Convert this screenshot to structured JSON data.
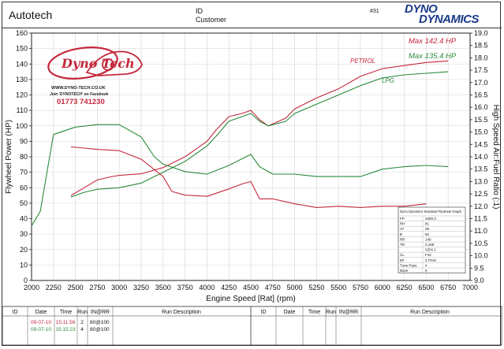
{
  "header": {
    "company": "Autotech",
    "id_label": "ID",
    "customer_label": "Customer",
    "number": "#31",
    "brand_top": "DYNO",
    "brand_bottom": "DYNAMICS"
  },
  "logo": {
    "text": "Dyno Tech",
    "url": "WWW.DYNO-TECH.CO.UK",
    "facebook": "Join 'DYNOTECH' on Facebook",
    "phone": "01773 741230"
  },
  "colors": {
    "petrol": "#c4283c",
    "lpg": "#2a8a3a",
    "axis": "#222222",
    "grid": "#d4d4d4"
  },
  "chart_data": {
    "type": "line",
    "xlabel": "Engine Speed [Rat] (rpm)",
    "ylabel": "Flywheel Power (HP)",
    "y2label": "High Speed Air:Fuel Ratio (:1)",
    "xlim": [
      2000,
      7000
    ],
    "ylim": [
      0,
      160
    ],
    "y2lim": [
      9.0,
      19.0
    ],
    "x_ticks": [
      2000,
      2250,
      2500,
      2750,
      3000,
      3250,
      3500,
      3750,
      4000,
      4250,
      4500,
      4750,
      5000,
      5250,
      5500,
      5750,
      6000,
      6250,
      6500,
      6750,
      7000
    ],
    "y_ticks": [
      0,
      10,
      20,
      30,
      40,
      50,
      60,
      70,
      80,
      90,
      100,
      110,
      120,
      130,
      140,
      150,
      160
    ],
    "y2_ticks": [
      "9.0",
      "9.5",
      "10.0",
      "10.5",
      "11.0",
      "11.5",
      "12.0",
      "12.5",
      "13.0",
      "13.5",
      "14.0",
      "14.5",
      "15.0",
      "15.5",
      "16.0",
      "16.5",
      "17.0",
      "17.5",
      "18.0",
      "18.5",
      "19.0"
    ],
    "grid": true,
    "annotations": {
      "max_petrol": "Max 142.4 HP",
      "max_lpg": "Max 135.4 HP",
      "petrol_label": "PETROL",
      "lpg_label": "LPG"
    },
    "series": [
      {
        "name": "PETROL",
        "axis": "power",
        "x": [
          2450,
          2600,
          2750,
          2900,
          3000,
          3250,
          3500,
          3750,
          4000,
          4100,
          4250,
          4400,
          4500,
          4600,
          4700,
          4900,
          5000,
          5250,
          5500,
          5750,
          6000,
          6250,
          6500,
          6750
        ],
        "y": [
          55,
          60,
          65,
          67,
          68,
          69,
          73,
          80,
          90,
          97,
          106,
          108,
          110,
          104,
          100,
          105,
          111,
          118,
          124,
          132,
          137,
          139,
          141,
          142
        ]
      },
      {
        "name": "LPG",
        "axis": "power",
        "x": [
          2450,
          2600,
          2750,
          3000,
          3250,
          3500,
          3750,
          4000,
          4100,
          4250,
          4400,
          4500,
          4600,
          4700,
          4900,
          5000,
          5250,
          5500,
          5750,
          6000,
          6250,
          6500,
          6750
        ],
        "y": [
          54,
          57,
          59,
          60,
          63,
          70,
          77,
          87,
          93,
          103,
          106,
          108,
          103,
          100,
          103,
          108,
          114,
          120,
          126,
          131,
          133,
          134,
          135
        ]
      },
      {
        "name": "PETROL AFR",
        "axis": "afr",
        "x": [
          2450,
          2600,
          2750,
          3000,
          3250,
          3500,
          3600,
          3750,
          4000,
          4250,
          4400,
          4500,
          4600,
          4750,
          5000,
          5250,
          5500,
          5750,
          6000,
          6250,
          6500
        ],
        "y": [
          14.4,
          14.35,
          14.3,
          14.25,
          13.9,
          13.2,
          12.6,
          12.45,
          12.4,
          12.7,
          12.9,
          13.0,
          12.3,
          12.3,
          12.1,
          11.95,
          12.0,
          11.95,
          12.0,
          12.0,
          12.1
        ]
      },
      {
        "name": "LPG AFR",
        "axis": "afr",
        "x": [
          2000,
          2100,
          2250,
          2500,
          2750,
          3000,
          3250,
          3400,
          3500,
          3750,
          4000,
          4250,
          4500,
          4600,
          4750,
          5000,
          5250,
          5500,
          5750,
          6000,
          6250,
          6500,
          6750
        ],
        "y": [
          11.2,
          11.8,
          14.9,
          15.2,
          15.3,
          15.3,
          14.8,
          14.0,
          13.7,
          13.4,
          13.3,
          13.65,
          14.1,
          13.6,
          13.3,
          13.3,
          13.2,
          13.2,
          13.2,
          13.5,
          13.6,
          13.65,
          13.6
        ]
      }
    ]
  },
  "summary_box": {
    "title": "Dyno Dynamics Standard Flywheel Graph",
    "rows": [
      [
        "FP",
        "1000.3"
      ],
      [
        "RH",
        "81"
      ],
      [
        "AT",
        "28"
      ],
      [
        "B",
        "82"
      ],
      [
        "RR",
        "140"
      ],
      [
        "TR",
        "3.168"
      ],
      [
        "",
        "GEN 1"
      ],
      [
        "CL",
        "F44"
      ],
      [
        "EF",
        "3 ITHU"
      ],
      [
        "Tune Pass",
        "4"
      ],
      [
        "Base",
        "0"
      ]
    ]
  },
  "footer": {
    "left_headers": [
      "ID",
      "Date",
      "Time",
      "Run",
      "IN@RR",
      "Run Description"
    ],
    "right_headers": [
      "ID",
      "Date",
      "Time",
      "Run",
      "IN@RR",
      "Run Description"
    ],
    "rows": [
      {
        "date": "09-07-10",
        "time": "15:11:56",
        "run": "2",
        "inrr": "80@100"
      },
      {
        "date": "09-07-10",
        "time": "15:15:23",
        "run": "4",
        "inrr": "80@100"
      }
    ]
  }
}
